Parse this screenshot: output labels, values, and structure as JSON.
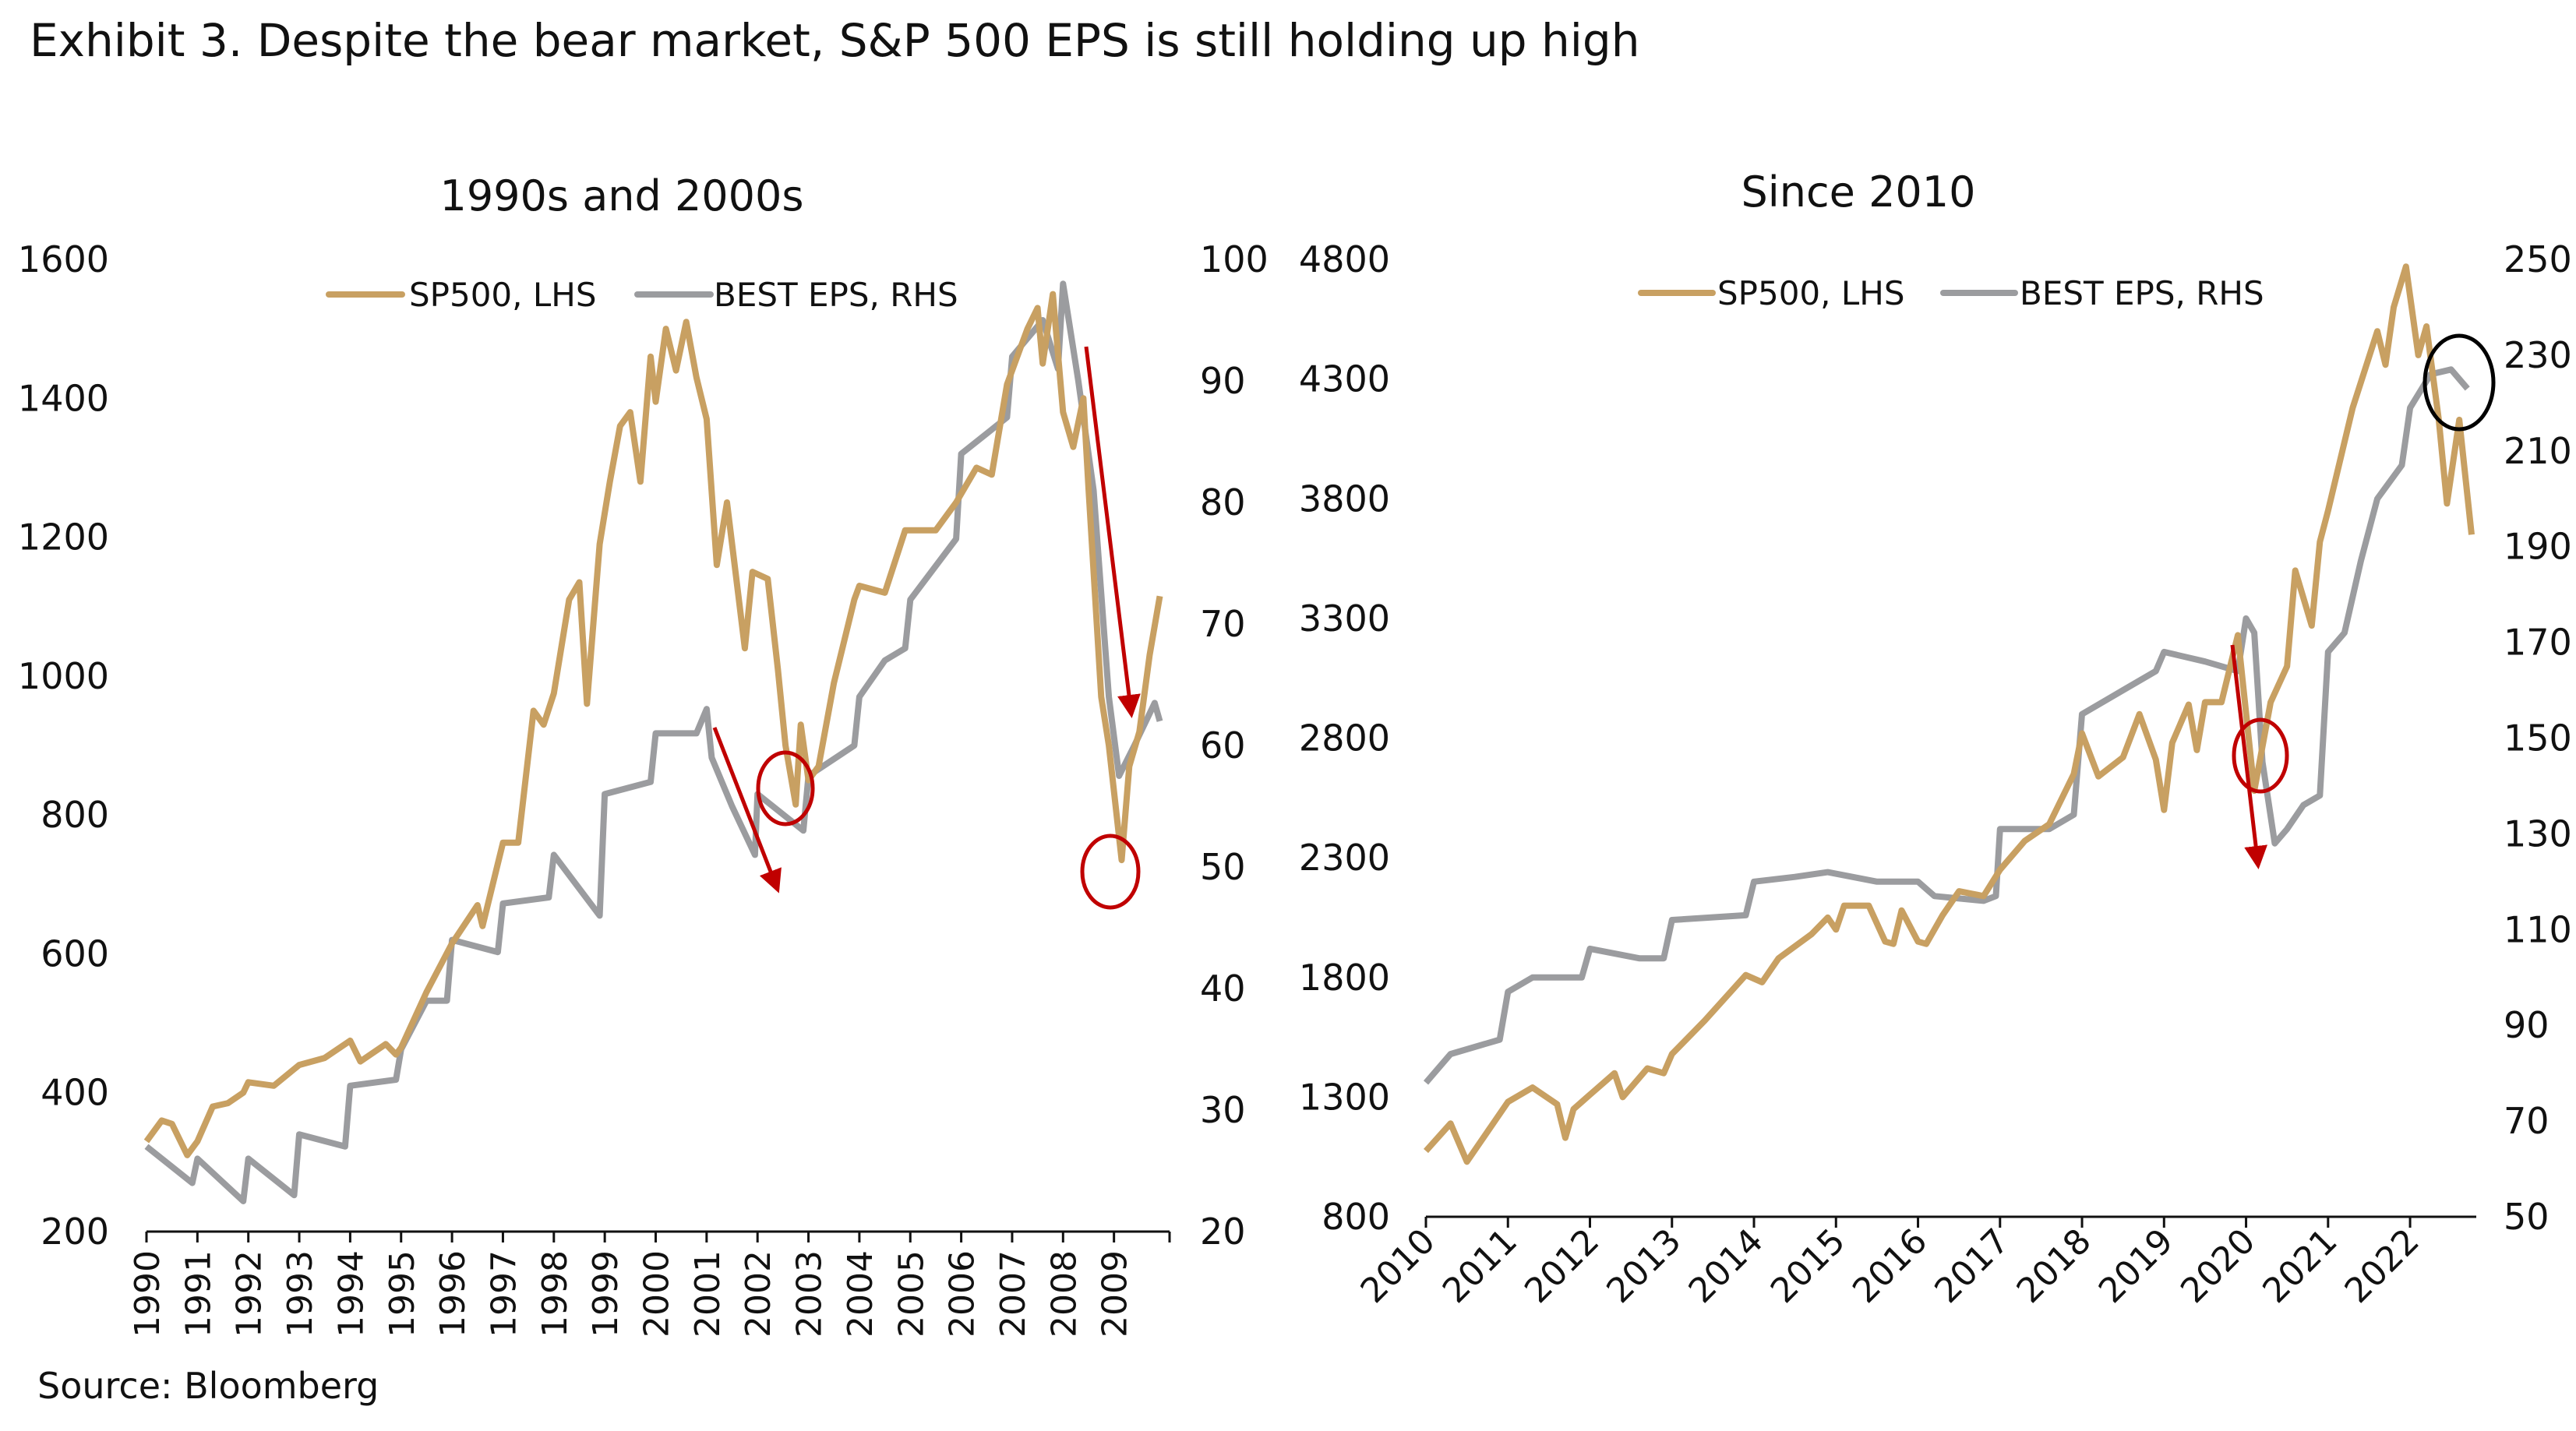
{
  "title": "Exhibit 3. Despite the bear market, S&P 500 EPS is still holding up high",
  "source": "Source: Bloomberg",
  "colors": {
    "sp500": "#c8a062",
    "eps": "#9b9c9f",
    "annotation_red": "#c00000",
    "annotation_black": "#000000"
  },
  "chart_data": [
    {
      "type": "line",
      "title": "1990s and 2000s",
      "legend": [
        "SP500, LHS",
        "BEST EPS, RHS"
      ],
      "legend_position": "top-center",
      "grid": false,
      "xlim": [
        1990,
        2010
      ],
      "x_ticks": [
        "1990",
        "1991",
        "1992",
        "1993",
        "1994",
        "1995",
        "1996",
        "1997",
        "1998",
        "1999",
        "2000",
        "2001",
        "2002",
        "2003",
        "2004",
        "2005",
        "2006",
        "2007",
        "2008",
        "2009"
      ],
      "y_left": {
        "lim": [
          200,
          1600
        ],
        "ticks": [
          "200",
          "400",
          "600",
          "800",
          "1000",
          "1200",
          "1400",
          "1600"
        ]
      },
      "y_right": {
        "lim": [
          20,
          100
        ],
        "ticks": [
          "20",
          "30",
          "40",
          "50",
          "60",
          "70",
          "80",
          "90",
          "100"
        ]
      },
      "series": [
        {
          "name": "SP500, LHS",
          "axis": "left",
          "points": [
            [
              1990,
              330
            ],
            [
              1990.3,
              360
            ],
            [
              1990.5,
              355
            ],
            [
              1990.8,
              310
            ],
            [
              1991,
              330
            ],
            [
              1991.3,
              380
            ],
            [
              1991.6,
              385
            ],
            [
              1991.9,
              400
            ],
            [
              1992,
              415
            ],
            [
              1992.5,
              410
            ],
            [
              1993,
              440
            ],
            [
              1993.5,
              450
            ],
            [
              1994,
              475
            ],
            [
              1994.2,
              445
            ],
            [
              1994.5,
              460
            ],
            [
              1994.7,
              470
            ],
            [
              1994.9,
              455
            ],
            [
              1995,
              465
            ],
            [
              1995.5,
              545
            ],
            [
              1996,
              615
            ],
            [
              1996.5,
              670
            ],
            [
              1996.6,
              640
            ],
            [
              1997,
              760
            ],
            [
              1997.3,
              760
            ],
            [
              1997.6,
              950
            ],
            [
              1997.8,
              930
            ],
            [
              1998,
              975
            ],
            [
              1998.3,
              1110
            ],
            [
              1998.5,
              1135
            ],
            [
              1998.65,
              960
            ],
            [
              1998.9,
              1190
            ],
            [
              1999.1,
              1280
            ],
            [
              1999.3,
              1360
            ],
            [
              1999.5,
              1380
            ],
            [
              1999.7,
              1280
            ],
            [
              1999.9,
              1460
            ],
            [
              2000,
              1395
            ],
            [
              2000.2,
              1500
            ],
            [
              2000.4,
              1440
            ],
            [
              2000.6,
              1510
            ],
            [
              2000.8,
              1430
            ],
            [
              2001,
              1370
            ],
            [
              2001.2,
              1160
            ],
            [
              2001.4,
              1250
            ],
            [
              2001.6,
              1130
            ],
            [
              2001.75,
              1040
            ],
            [
              2001.9,
              1150
            ],
            [
              2002.2,
              1140
            ],
            [
              2002.4,
              1010
            ],
            [
              2002.55,
              900
            ],
            [
              2002.75,
              815
            ],
            [
              2002.85,
              930
            ],
            [
              2003,
              850
            ],
            [
              2003.2,
              870
            ],
            [
              2003.5,
              990
            ],
            [
              2003.9,
              1110
            ],
            [
              2004,
              1130
            ],
            [
              2004.5,
              1120
            ],
            [
              2004.9,
              1210
            ],
            [
              2005.5,
              1210
            ],
            [
              2005.9,
              1250
            ],
            [
              2006.3,
              1300
            ],
            [
              2006.6,
              1290
            ],
            [
              2006.9,
              1420
            ],
            [
              2007.3,
              1500
            ],
            [
              2007.5,
              1530
            ],
            [
              2007.6,
              1450
            ],
            [
              2007.8,
              1550
            ],
            [
              2008,
              1380
            ],
            [
              2008.2,
              1330
            ],
            [
              2008.4,
              1400
            ],
            [
              2008.5,
              1270
            ],
            [
              2008.75,
              970
            ],
            [
              2008.9,
              900
            ],
            [
              2009.15,
              735
            ],
            [
              2009.3,
              870
            ],
            [
              2009.5,
              920
            ],
            [
              2009.7,
              1030
            ],
            [
              2009.9,
              1115
            ]
          ]
        },
        {
          "name": "BEST EPS, RHS",
          "axis": "right",
          "points": [
            [
              1990,
              27
            ],
            [
              1990.9,
              24
            ],
            [
              1991,
              26
            ],
            [
              1991.9,
              22.5
            ],
            [
              1992,
              26
            ],
            [
              1992.9,
              23
            ],
            [
              1993,
              28
            ],
            [
              1993.9,
              27
            ],
            [
              1994,
              32
            ],
            [
              1994.9,
              32.5
            ],
            [
              1995,
              35
            ],
            [
              1995.5,
              39
            ],
            [
              1995.9,
              39
            ],
            [
              1996,
              44
            ],
            [
              1996.9,
              43
            ],
            [
              1997,
              47
            ],
            [
              1997.9,
              47.5
            ],
            [
              1998,
              51
            ],
            [
              1998.9,
              46
            ],
            [
              1999,
              56
            ],
            [
              1999.9,
              57
            ],
            [
              2000,
              61
            ],
            [
              2000.8,
              61
            ],
            [
              2001,
              63
            ],
            [
              2001.1,
              59
            ],
            [
              2001.5,
              55
            ],
            [
              2001.95,
              51
            ],
            [
              2002,
              56
            ],
            [
              2002.6,
              54
            ],
            [
              2002.9,
              53
            ],
            [
              2003,
              57.5
            ],
            [
              2003.9,
              60
            ],
            [
              2004,
              64
            ],
            [
              2004.5,
              67
            ],
            [
              2004.9,
              68
            ],
            [
              2005,
              72
            ],
            [
              2005.9,
              77
            ],
            [
              2006,
              84
            ],
            [
              2006.9,
              87
            ],
            [
              2007,
              92
            ],
            [
              2007.6,
              95
            ],
            [
              2007.9,
              91
            ],
            [
              2008,
              98
            ],
            [
              2008.3,
              90
            ],
            [
              2008.6,
              81
            ],
            [
              2008.9,
              64
            ],
            [
              2009.1,
              57.5
            ],
            [
              2009.4,
              60
            ],
            [
              2009.8,
              63.5
            ],
            [
              2009.9,
              62
            ]
          ]
        }
      ]
    },
    {
      "type": "line",
      "title": "Since 2010",
      "legend": [
        "SP500, LHS",
        "BEST EPS, RHS"
      ],
      "legend_position": "top-center",
      "grid": false,
      "xlim": [
        2010,
        2022.75
      ],
      "x_ticks": [
        "2010",
        "2011",
        "2012",
        "2013",
        "2014",
        "2015",
        "2016",
        "2017",
        "2018",
        "2019",
        "2020",
        "2021",
        "2022"
      ],
      "y_left": {
        "lim": [
          800,
          4800
        ],
        "ticks": [
          "800",
          "1300",
          "1800",
          "2300",
          "2800",
          "3300",
          "3800",
          "4300",
          "4800"
        ]
      },
      "y_right": {
        "lim": [
          50,
          250
        ],
        "ticks": [
          "50",
          "70",
          "90",
          "110",
          "130",
          "150",
          "170",
          "190",
          "210",
          "230",
          "250"
        ]
      },
      "series": [
        {
          "name": "SP500, LHS",
          "axis": "left",
          "points": [
            [
              2010,
              1075
            ],
            [
              2010.3,
              1190
            ],
            [
              2010.5,
              1030
            ],
            [
              2010.8,
              1180
            ],
            [
              2011,
              1280
            ],
            [
              2011.3,
              1340
            ],
            [
              2011.6,
              1270
            ],
            [
              2011.7,
              1130
            ],
            [
              2011.8,
              1250
            ],
            [
              2012,
              1310
            ],
            [
              2012.3,
              1400
            ],
            [
              2012.4,
              1300
            ],
            [
              2012.7,
              1420
            ],
            [
              2012.9,
              1400
            ],
            [
              2013,
              1480
            ],
            [
              2013.4,
              1620
            ],
            [
              2013.9,
              1810
            ],
            [
              2014.1,
              1780
            ],
            [
              2014.3,
              1880
            ],
            [
              2014.7,
              1980
            ],
            [
              2014.9,
              2050
            ],
            [
              2015,
              2000
            ],
            [
              2015.1,
              2100
            ],
            [
              2015.4,
              2100
            ],
            [
              2015.6,
              1950
            ],
            [
              2015.7,
              1940
            ],
            [
              2015.8,
              2080
            ],
            [
              2016,
              1950
            ],
            [
              2016.1,
              1940
            ],
            [
              2016.3,
              2060
            ],
            [
              2016.5,
              2160
            ],
            [
              2016.8,
              2140
            ],
            [
              2017,
              2250
            ],
            [
              2017.3,
              2370
            ],
            [
              2017.6,
              2440
            ],
            [
              2017.9,
              2650
            ],
            [
              2018,
              2820
            ],
            [
              2018.2,
              2640
            ],
            [
              2018.5,
              2720
            ],
            [
              2018.7,
              2900
            ],
            [
              2018.9,
              2710
            ],
            [
              2019,
              2500
            ],
            [
              2019.1,
              2780
            ],
            [
              2019.3,
              2940
            ],
            [
              2019.4,
              2750
            ],
            [
              2019.5,
              2950
            ],
            [
              2019.7,
              2950
            ],
            [
              2019.9,
              3230
            ],
            [
              2020.1,
              2580
            ],
            [
              2020.3,
              2950
            ],
            [
              2020.5,
              3100
            ],
            [
              2020.6,
              3500
            ],
            [
              2020.8,
              3270
            ],
            [
              2020.9,
              3620
            ],
            [
              2021,
              3750
            ],
            [
              2021.3,
              4180
            ],
            [
              2021.6,
              4500
            ],
            [
              2021.7,
              4360
            ],
            [
              2021.8,
              4600
            ],
            [
              2021.95,
              4770
            ],
            [
              2022.1,
              4400
            ],
            [
              2022.2,
              4520
            ],
            [
              2022.35,
              4130
            ],
            [
              2022.45,
              3780
            ],
            [
              2022.6,
              4130
            ],
            [
              2022.75,
              3650
            ]
          ]
        },
        {
          "name": "BEST EPS, RHS",
          "axis": "right",
          "points": [
            [
              2010,
              78
            ],
            [
              2010.3,
              84
            ],
            [
              2010.9,
              87
            ],
            [
              2011,
              97
            ],
            [
              2011.3,
              100
            ],
            [
              2011.9,
              100
            ],
            [
              2012,
              106
            ],
            [
              2012.6,
              104
            ],
            [
              2012.9,
              104
            ],
            [
              2013,
              112
            ],
            [
              2013.9,
              113
            ],
            [
              2014,
              120
            ],
            [
              2014.5,
              121
            ],
            [
              2014.9,
              122
            ],
            [
              2015.5,
              120
            ],
            [
              2016,
              120
            ],
            [
              2016.2,
              117
            ],
            [
              2016.8,
              116
            ],
            [
              2016.95,
              117
            ],
            [
              2017,
              131
            ],
            [
              2017.6,
              131
            ],
            [
              2017.9,
              134
            ],
            [
              2018,
              155
            ],
            [
              2018.5,
              160
            ],
            [
              2018.9,
              164
            ],
            [
              2019,
              168
            ],
            [
              2019.5,
              166
            ],
            [
              2019.9,
              164
            ],
            [
              2020,
              175
            ],
            [
              2020.1,
              172
            ],
            [
              2020.2,
              145
            ],
            [
              2020.35,
              128
            ],
            [
              2020.5,
              131
            ],
            [
              2020.7,
              136
            ],
            [
              2020.9,
              138
            ],
            [
              2021,
              168
            ],
            [
              2021.2,
              172
            ],
            [
              2021.4,
              187
            ],
            [
              2021.6,
              200
            ],
            [
              2021.9,
              207
            ],
            [
              2022,
              219
            ],
            [
              2022.25,
              226
            ],
            [
              2022.5,
              227
            ],
            [
              2022.7,
              223
            ]
          ]
        }
      ]
    }
  ]
}
